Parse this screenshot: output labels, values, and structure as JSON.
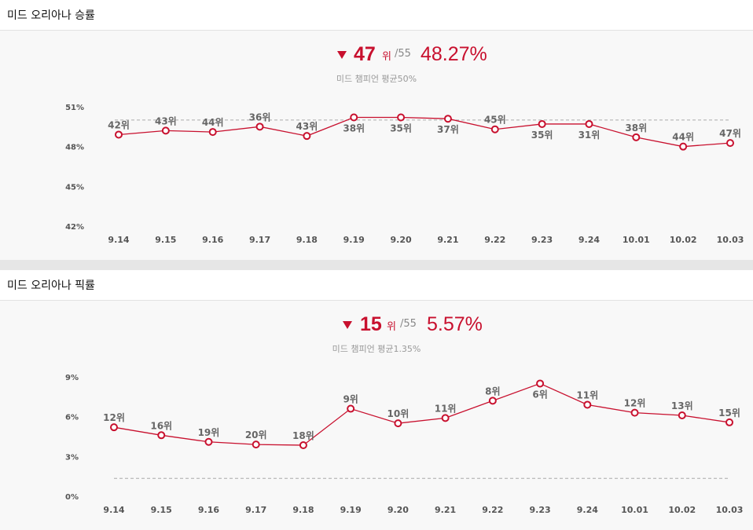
{
  "colors": {
    "accent": "#c8102e",
    "avg_line": "#aaaaaa",
    "panel_bg": "#f8f8f8"
  },
  "panels": [
    {
      "title": "미드 오리아나 승률",
      "rank": "47",
      "rank_unit": "위",
      "rank_total": "/55",
      "rate": "48.27%",
      "trend_icon": "down-triangle-icon",
      "avg_text": "미드 챔피언 평균50%"
    },
    {
      "title": "미드 오리아나 픽률",
      "rank": "15",
      "rank_unit": "위",
      "rank_total": "/55",
      "rate": "5.57%",
      "trend_icon": "down-triangle-icon",
      "avg_text": "미드 챔피언 평균1.35%"
    }
  ],
  "chart_data": [
    {
      "type": "line",
      "title": "미드 오리아나 승률",
      "categories": [
        "9.14",
        "9.15",
        "9.16",
        "9.17",
        "9.18",
        "9.19",
        "9.20",
        "9.21",
        "9.22",
        "9.23",
        "9.24",
        "10.01",
        "10.02",
        "10.03"
      ],
      "values": [
        48.9,
        49.2,
        49.1,
        49.5,
        48.8,
        50.2,
        50.2,
        50.1,
        49.3,
        49.7,
        49.7,
        48.7,
        48.0,
        48.27
      ],
      "point_labels": [
        "42위",
        "43위",
        "44위",
        "36위",
        "43위",
        "38위",
        "35위",
        "37위",
        "45위",
        "35위",
        "31위",
        "38위",
        "44위",
        "47위"
      ],
      "label_position": [
        "above",
        "above",
        "above",
        "above",
        "above",
        "below",
        "below",
        "below",
        "above",
        "below",
        "below",
        "above",
        "above",
        "above"
      ],
      "y_ticks": [
        "51%",
        "48%",
        "45%",
        "42%"
      ],
      "ylim": [
        42,
        51
      ],
      "reference_line": 50,
      "grid": false
    },
    {
      "type": "line",
      "title": "미드 오리아나 픽률",
      "categories": [
        "9.14",
        "9.15",
        "9.16",
        "9.17",
        "9.18",
        "9.19",
        "9.20",
        "9.21",
        "9.22",
        "9.23",
        "9.24",
        "10.01",
        "10.02",
        "10.03"
      ],
      "values": [
        5.2,
        4.6,
        4.1,
        3.9,
        3.85,
        6.6,
        5.5,
        5.9,
        7.2,
        8.5,
        6.9,
        6.3,
        6.1,
        5.57
      ],
      "point_labels": [
        "12위",
        "16위",
        "19위",
        "20위",
        "18위",
        "9위",
        "10위",
        "11위",
        "8위",
        "6위",
        "11위",
        "12위",
        "13위",
        "15위"
      ],
      "label_position": [
        "above",
        "above",
        "above",
        "above",
        "above",
        "above",
        "above",
        "above",
        "above",
        "below",
        "above",
        "above",
        "above",
        "above"
      ],
      "y_ticks": [
        "9%",
        "6%",
        "3%",
        "0%"
      ],
      "ylim": [
        0,
        9
      ],
      "reference_line": 1.35,
      "grid": false
    }
  ]
}
